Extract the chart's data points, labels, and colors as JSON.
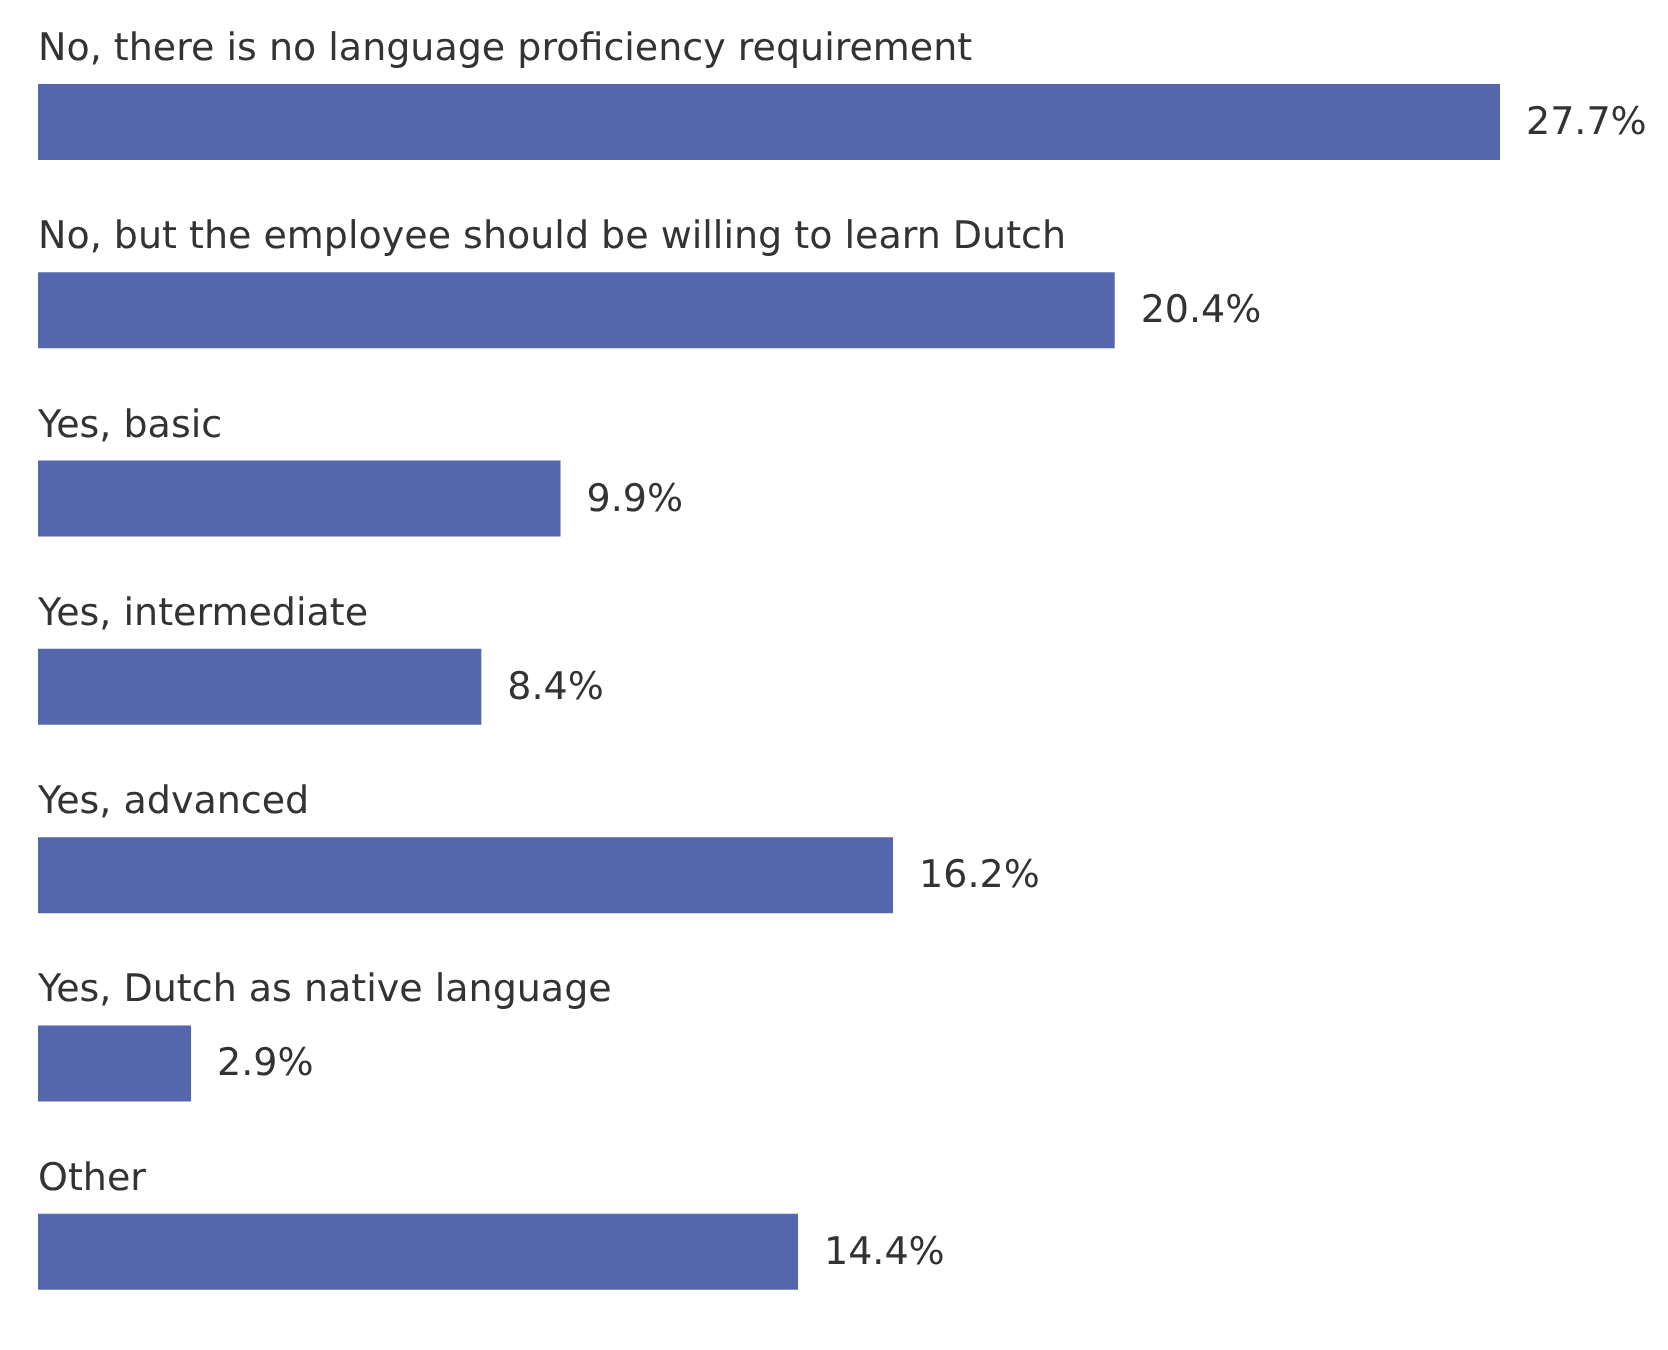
{
  "chart_data": {
    "type": "bar",
    "orientation": "horizontal",
    "categories": [
      "No, there is no language proficiency requirement",
      "No, but the employee should be willing to learn Dutch",
      "Yes, basic",
      "Yes, intermediate",
      "Yes, advanced",
      "Yes, Dutch as native language",
      "Other"
    ],
    "values": [
      27.7,
      20.4,
      9.9,
      8.4,
      16.2,
      2.9,
      14.4
    ],
    "value_labels": [
      "27.7%",
      "20.4%",
      "9.9%",
      "8.4%",
      "16.2%",
      "2.9%",
      "14.4%"
    ],
    "color": "#5567ad",
    "grid": false,
    "legend": false,
    "tick_labels": false
  }
}
